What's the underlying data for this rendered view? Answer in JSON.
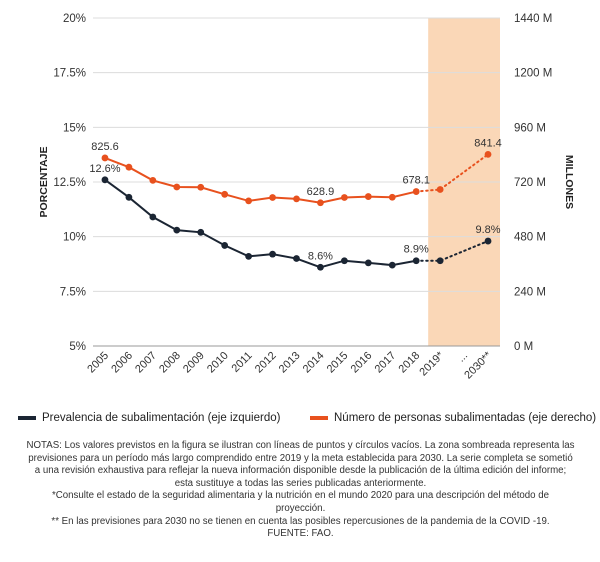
{
  "chart_data": {
    "type": "line",
    "categories": [
      "2005",
      "2006",
      "2007",
      "2008",
      "2009",
      "2010",
      "2011",
      "2012",
      "2013",
      "2014",
      "2015",
      "2016",
      "2017",
      "2018",
      "2019*",
      "...",
      "2030**"
    ],
    "y_left": {
      "label": "PORCENTAJE",
      "ticks": [
        "5%",
        "7.5%",
        "10%",
        "12.5%",
        "15%",
        "17.5%",
        "20%"
      ],
      "range": [
        5,
        20
      ]
    },
    "y_right": {
      "label": "MILLONES",
      "ticks": [
        "0 M",
        "240 M",
        "480 M",
        "720 M",
        "960 M",
        "1200 M",
        "1440 M"
      ],
      "range": [
        0,
        1440
      ]
    },
    "projection_shading": {
      "from": "2019*",
      "to": "2030**",
      "color": "#fad7b7"
    },
    "series": [
      {
        "name": "Prevalencia de subalimentación (eje izquierdo)",
        "axis": "left",
        "color": "#1b2533",
        "values": [
          12.6,
          11.8,
          10.9,
          10.3,
          10.2,
          9.6,
          9.1,
          9.2,
          9.0,
          8.6,
          8.9,
          8.8,
          8.7,
          8.9,
          8.9,
          null,
          9.8
        ],
        "labels": [
          {
            "index": 0,
            "text": "12.6%"
          },
          {
            "index": 9,
            "text": "8.6%"
          },
          {
            "index": 13,
            "text": "8.9%"
          },
          {
            "index": 16,
            "text": "9.8%"
          }
        ],
        "projected_from_index": 13
      },
      {
        "name": "Número de personas subalimentadas (eje derecho)",
        "axis": "right",
        "color": "#e8511e",
        "values": [
          825.6,
          785,
          727,
          698,
          697,
          666,
          637,
          652,
          646,
          628.9,
          652,
          656,
          653,
          678.1,
          687,
          null,
          841.4
        ],
        "labels": [
          {
            "index": 0,
            "text": "825.6"
          },
          {
            "index": 9,
            "text": "628.9"
          },
          {
            "index": 13,
            "text": "678.1"
          },
          {
            "index": 16,
            "text": "841.4"
          }
        ],
        "projected_from_index": 13
      }
    ]
  },
  "notes": [
    "NOTAS: Los valores previstos en la figura se ilustran con líneas de puntos y círculos vacíos. La zona sombreada representa las",
    "previsiones para un período más largo comprendido entre 2019 y la meta establecida para 2030. La serie completa se sometió",
    "a una revisión exhaustiva para reflejar la nueva información disponible desde la publicación de la última edición del informe;",
    "esta sustituye a todas las series publicadas anteriormente.",
    "*Consulte el estado de la seguridad alimentaria y la nutrición en el mundo 2020 para una descripción del método de",
    "proyección.",
    "** En las previsiones para 2030 no se tienen en cuenta las posibles repercusiones de la pandemia de la COVID -19.",
    "FUENTE: FAO."
  ]
}
